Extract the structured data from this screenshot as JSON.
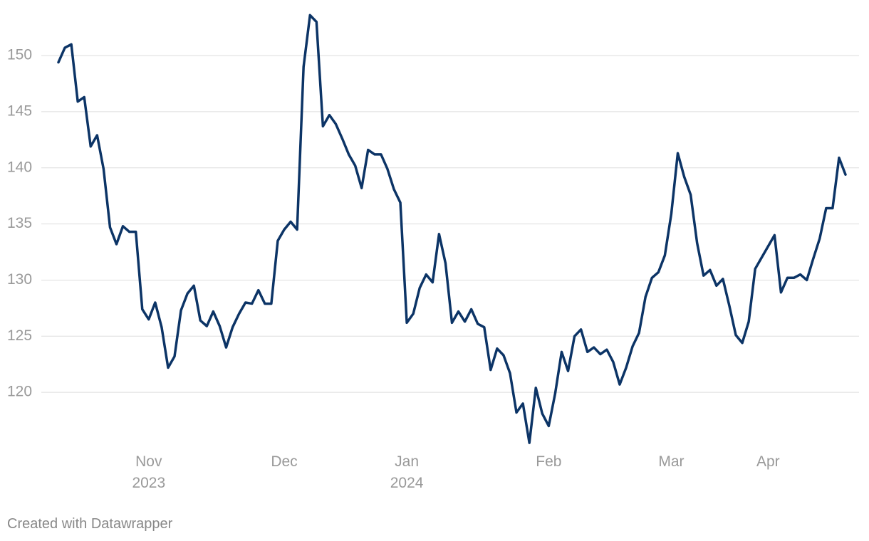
{
  "chart_data": {
    "type": "line",
    "categories": [
      null,
      null,
      null,
      null,
      null,
      null,
      null,
      null,
      null,
      null,
      null,
      null,
      null,
      null,
      "Nov\n2023",
      null,
      null,
      null,
      null,
      null,
      null,
      null,
      null,
      null,
      null,
      null,
      null,
      null,
      null,
      null,
      null,
      null,
      null,
      null,
      null,
      "Dec",
      null,
      null,
      null,
      null,
      null,
      null,
      null,
      null,
      null,
      null,
      null,
      null,
      null,
      null,
      null,
      null,
      null,
      null,
      "Jan\n2024",
      null,
      null,
      null,
      null,
      null,
      null,
      null,
      null,
      null,
      null,
      null,
      null,
      null,
      null,
      null,
      null,
      null,
      null,
      null,
      null,
      null,
      "Feb",
      null,
      null,
      null,
      null,
      null,
      null,
      null,
      null,
      null,
      null,
      null,
      null,
      null,
      null,
      null,
      null,
      null,
      null,
      "Mar",
      null,
      null,
      null,
      null,
      null,
      null,
      null,
      null,
      null,
      null,
      null,
      null,
      null,
      null,
      "Apr",
      null,
      null,
      null,
      null,
      null,
      null,
      null,
      null,
      null,
      null,
      null,
      null
    ],
    "series": [
      {
        "color": "#0c3466",
        "values": [
          149.4,
          150.7,
          151.0,
          145.9,
          146.3,
          141.9,
          142.9,
          139.9,
          134.7,
          133.2,
          134.8,
          134.3,
          134.3,
          127.4,
          126.5,
          128.0,
          125.8,
          122.2,
          123.2,
          127.3,
          128.8,
          129.5,
          126.4,
          125.9,
          127.2,
          125.9,
          124.0,
          125.8,
          127.0,
          128.0,
          127.9,
          129.1,
          127.9,
          127.9,
          133.5,
          134.5,
          135.2,
          134.5,
          149.0,
          153.6,
          153.0,
          143.7,
          144.7,
          143.9,
          142.6,
          141.2,
          140.2,
          138.2,
          141.6,
          141.2,
          141.2,
          139.9,
          138.1,
          136.9,
          126.2,
          127.0,
          129.3,
          130.5,
          129.8,
          134.1,
          131.5,
          126.2,
          127.2,
          126.3,
          127.4,
          126.1,
          125.8,
          122.0,
          123.9,
          123.3,
          121.7,
          118.2,
          119.0,
          115.5,
          120.4,
          118.1,
          117.0,
          119.9,
          123.6,
          121.9,
          125.0,
          125.6,
          123.6,
          124.0,
          123.4,
          123.8,
          122.7,
          120.7,
          122.2,
          124.1,
          125.3,
          128.5,
          130.2,
          130.7,
          132.2,
          135.9,
          141.3,
          139.2,
          137.6,
          133.3,
          130.4,
          130.9,
          129.5,
          130.1,
          127.7,
          125.1,
          124.4,
          126.3,
          131.0,
          132.0,
          133.0,
          134.0,
          128.9,
          130.2,
          130.2,
          130.5,
          130.0,
          131.9,
          133.7,
          136.4,
          136.4,
          140.9,
          139.4
        ]
      }
    ],
    "ylim": [
      115,
      154
    ],
    "yticks": [
      120,
      125,
      130,
      135,
      140,
      145,
      150
    ],
    "grid": true,
    "credit": "Created with Datawrapper"
  }
}
